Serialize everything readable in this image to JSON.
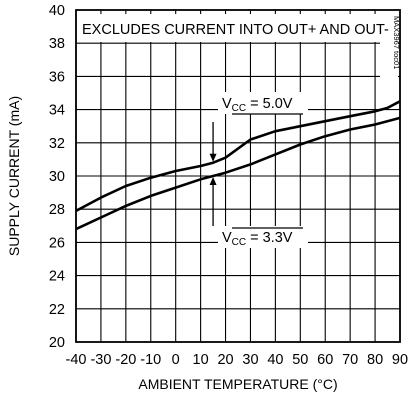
{
  "chart_data": {
    "type": "line",
    "xlabel": "AMBIENT TEMPERATURE (°C)",
    "ylabel": "SUPPLY CURRENT (mA)",
    "xlim": [
      -40,
      90
    ],
    "ylim": [
      20,
      40
    ],
    "x_ticks": [
      -40,
      -30,
      -20,
      -10,
      0,
      10,
      20,
      30,
      40,
      50,
      60,
      70,
      80,
      90
    ],
    "y_ticks": [
      20,
      22,
      24,
      26,
      28,
      30,
      32,
      34,
      36,
      38,
      40
    ],
    "x_tick_labels": [
      "-40",
      "-30",
      "-20",
      "-10",
      "0",
      "10",
      "20",
      "30",
      "40",
      "50",
      "60",
      "70",
      "80",
      "90"
    ],
    "y_tick_labels": [
      "20",
      "22",
      "24",
      "26",
      "28",
      "30",
      "32",
      "34",
      "36",
      "38",
      "40"
    ],
    "grid": true,
    "annotation_box": "EXCLUDES CURRENT INTO OUT+ AND OUT-",
    "side_label": "MAX3967 toc01",
    "series": [
      {
        "label_main": "V",
        "label_sub": "CC",
        "label_value": " = 5.0V",
        "x": [
          -40,
          -30,
          -20,
          -10,
          0,
          10,
          15,
          20,
          30,
          40,
          50,
          60,
          70,
          80,
          85,
          90
        ],
        "values": [
          27.9,
          28.7,
          29.4,
          29.9,
          30.3,
          30.6,
          30.8,
          31.1,
          32.2,
          32.7,
          33.0,
          33.3,
          33.6,
          33.9,
          34.1,
          34.5
        ]
      },
      {
        "label_main": "V",
        "label_sub": "CC",
        "label_value": " = 3.3V",
        "x": [
          -40,
          -30,
          -20,
          -10,
          0,
          10,
          15,
          20,
          30,
          40,
          50,
          60,
          70,
          80,
          90
        ],
        "values": [
          26.8,
          27.5,
          28.2,
          28.8,
          29.3,
          29.8,
          30.0,
          30.2,
          30.7,
          31.3,
          31.9,
          32.4,
          32.8,
          33.1,
          33.5
        ]
      }
    ],
    "arrow_x": 15
  }
}
